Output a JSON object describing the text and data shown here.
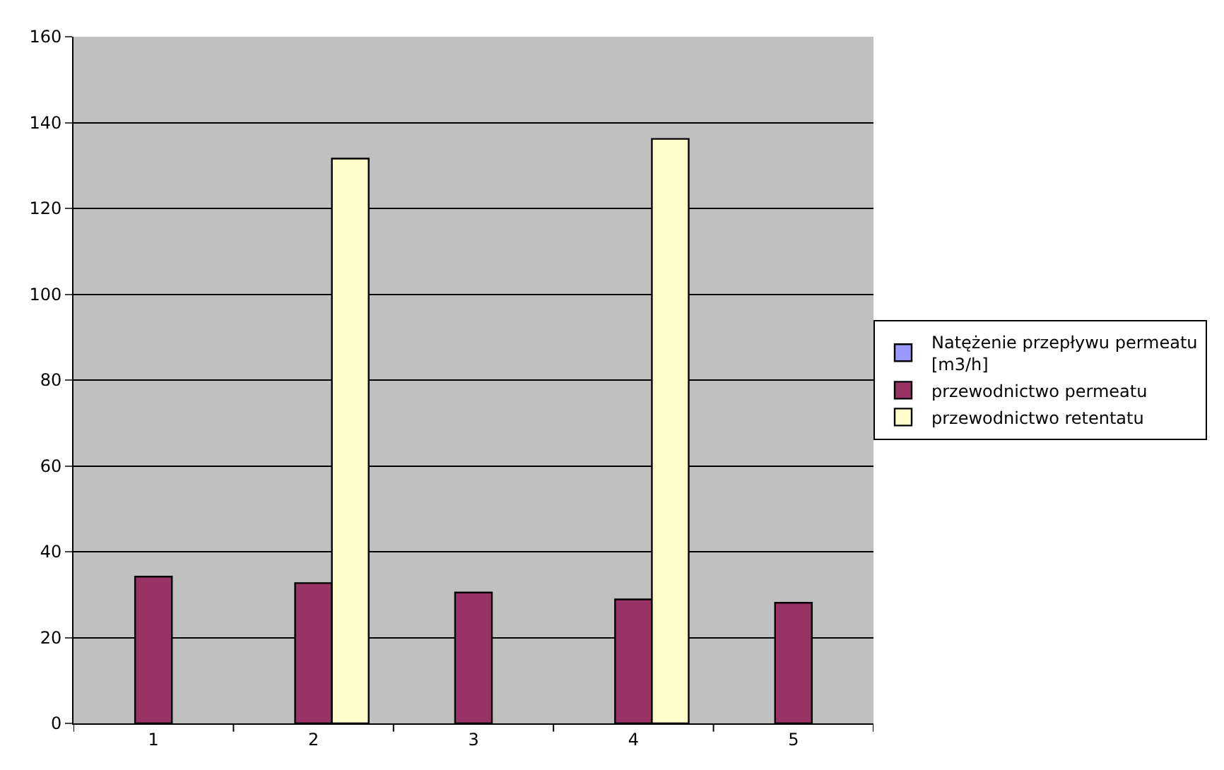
{
  "chart_data": {
    "type": "bar",
    "categories": [
      "1",
      "2",
      "3",
      "4",
      "5"
    ],
    "series": [
      {
        "name": "Natężenie przepływu permeatu [m3/h]",
        "color": "#9999ff",
        "values": [
          null,
          null,
          null,
          null,
          null
        ]
      },
      {
        "name": "przewodnictwo permeatu",
        "color": "#993366",
        "values": [
          34.2,
          32.7,
          30.5,
          28.9,
          28.1
        ]
      },
      {
        "name": "przewodnictwo retentatu",
        "color": "#ffffcc",
        "values": [
          null,
          131.6,
          null,
          136.2,
          null
        ]
      }
    ],
    "ylim": [
      0,
      160
    ],
    "yticks": [
      0,
      20,
      40,
      60,
      80,
      100,
      120,
      140,
      160
    ],
    "grid": "y",
    "legend": "right"
  }
}
